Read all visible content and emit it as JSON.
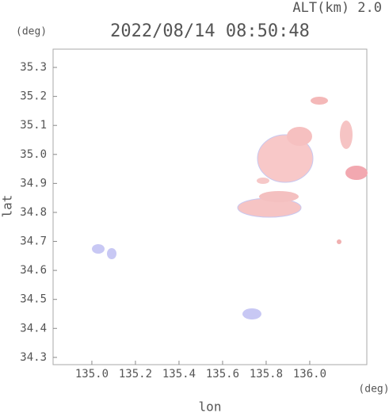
{
  "chart_data": {
    "type": "map",
    "altitude_label": "ALT(km) 2.0",
    "title": "2022/08/14 08:50:48",
    "y_unit": "(deg)",
    "x_unit": "(deg)",
    "ylabel": "lat",
    "xlabel": "lon",
    "xlim": [
      134.822,
      136.262
    ],
    "xticks": [
      {
        "value": 135.0,
        "label": "135.0"
      },
      135.2,
      135.4,
      135.6,
      135.8,
      {
        "value": 136.0,
        "label": "136.0"
      }
    ],
    "ylim": [
      34.275,
      35.363
    ],
    "yticks": [
      34.3,
      34.4,
      34.5,
      34.6,
      34.7,
      34.8,
      34.9,
      {
        "value": 35.0,
        "label": "35.0"
      },
      35.1,
      35.2,
      35.3
    ]
  }
}
